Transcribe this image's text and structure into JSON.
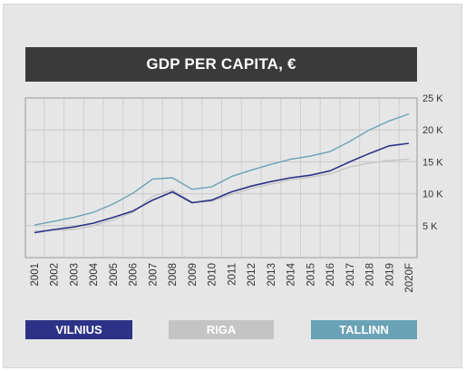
{
  "chart_data": {
    "type": "line",
    "title": "GDP PER CAPITA, €",
    "categories": [
      "2001",
      "2002",
      "2003",
      "2004",
      "2005",
      "2006",
      "2007",
      "2008",
      "2009",
      "2010",
      "2011",
      "2012",
      "2013",
      "2014",
      "2015",
      "2016",
      "2017",
      "2018",
      "2019",
      "2020F"
    ],
    "y_ticks": [
      "5 K",
      "10 K",
      "15 K",
      "20 K",
      "25 K"
    ],
    "ylim": [
      0,
      25000
    ],
    "grid": true,
    "legend_position": "bottom",
    "series": [
      {
        "name": "VILNIUS",
        "color": "#2c3387",
        "values": [
          3900,
          4400,
          4800,
          5400,
          6300,
          7300,
          9000,
          10300,
          8600,
          9000,
          10300,
          11200,
          11900,
          12500,
          12900,
          13600,
          15000,
          16300,
          17500,
          17900
        ]
      },
      {
        "name": "RIGA",
        "color": "#c4c4c4",
        "values": [
          4100,
          4300,
          4400,
          5000,
          5900,
          7100,
          9600,
          10600,
          8700,
          8800,
          9900,
          10800,
          11500,
          12200,
          12600,
          13100,
          14200,
          14800,
          15200,
          15400
        ]
      },
      {
        "name": "TALLINN",
        "color": "#6aa2b6",
        "values": [
          5100,
          5700,
          6300,
          7100,
          8400,
          10100,
          12300,
          12500,
          10700,
          11100,
          12700,
          13700,
          14600,
          15400,
          15900,
          16600,
          18200,
          20000,
          21400,
          22500
        ]
      }
    ]
  }
}
